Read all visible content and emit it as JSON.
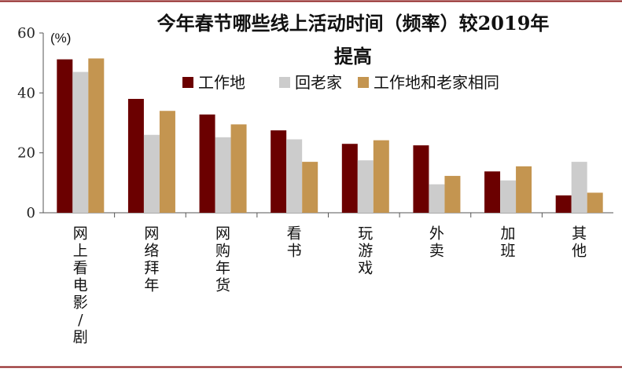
{
  "chart_data": {
    "type": "bar",
    "title_line1": "今年春节哪些线上活动时间（频率）较2019年",
    "title_line2": "提高",
    "unit": "(%)",
    "categories": [
      "网上看电影/剧",
      "网络拜年",
      "网购年货",
      "看书",
      "玩游戏",
      "外卖",
      "加班",
      "其他"
    ],
    "series": [
      {
        "name": "工作地",
        "color": "#6b0000",
        "values": [
          51.2,
          38.0,
          32.8,
          27.5,
          23.0,
          22.5,
          13.8,
          5.8
        ]
      },
      {
        "name": "回老家",
        "color": "#cccccc",
        "values": [
          47.0,
          26.0,
          25.2,
          24.5,
          17.5,
          9.5,
          10.8,
          17.0
        ]
      },
      {
        "name": "工作地和老家相同",
        "color": "#c49550",
        "values": [
          51.5,
          34.0,
          29.5,
          17.0,
          24.2,
          12.3,
          15.5,
          6.7
        ]
      }
    ],
    "ylim": [
      0,
      60
    ],
    "yticks": [
      0,
      20,
      40,
      60
    ],
    "legend_position": "top-center",
    "grid": false
  }
}
